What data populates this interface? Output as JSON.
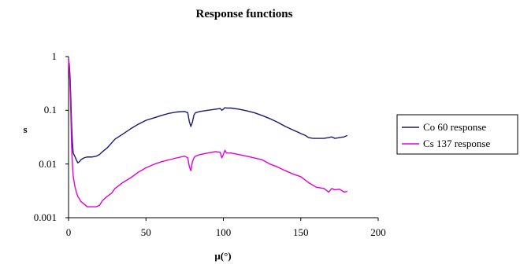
{
  "chart_data": {
    "type": "line",
    "title": "Response functions",
    "xlabel": "μ(°)",
    "ylabel": "s",
    "xlim": [
      0,
      200
    ],
    "ylim": [
      0.001,
      1
    ],
    "yscale": "log",
    "x_ticks": [
      "0",
      "50",
      "100",
      "150",
      "200"
    ],
    "y_ticks": [
      "0.001",
      "0.01",
      "0.1",
      "1"
    ],
    "grid": false,
    "legend_position": "right",
    "series": [
      {
        "name": "Co 60 response",
        "color": "#1a1a6e",
        "x": [
          0,
          0.5,
          1,
          1.5,
          2,
          2.5,
          3,
          4,
          5,
          6,
          7,
          8,
          10,
          12,
          15,
          18,
          20,
          22,
          25,
          28,
          30,
          35,
          40,
          45,
          50,
          55,
          60,
          65,
          70,
          75,
          77,
          78,
          79,
          80,
          81,
          82,
          85,
          90,
          95,
          98,
          99,
          100,
          101,
          102,
          105,
          110,
          115,
          120,
          125,
          130,
          135,
          140,
          145,
          150,
          153,
          155,
          158,
          160,
          165,
          168,
          170,
          172,
          175,
          178,
          180
        ],
        "y": [
          0.9,
          0.7,
          0.4,
          0.15,
          0.05,
          0.025,
          0.016,
          0.014,
          0.012,
          0.0105,
          0.011,
          0.012,
          0.013,
          0.0135,
          0.0135,
          0.014,
          0.015,
          0.017,
          0.02,
          0.025,
          0.029,
          0.036,
          0.045,
          0.055,
          0.065,
          0.072,
          0.08,
          0.088,
          0.093,
          0.095,
          0.09,
          0.062,
          0.05,
          0.06,
          0.082,
          0.09,
          0.095,
          0.1,
          0.105,
          0.108,
          0.1,
          0.105,
          0.112,
          0.11,
          0.11,
          0.105,
          0.098,
          0.09,
          0.08,
          0.07,
          0.06,
          0.05,
          0.043,
          0.037,
          0.034,
          0.031,
          0.03,
          0.03,
          0.03,
          0.031,
          0.032,
          0.03,
          0.031,
          0.032,
          0.034
        ]
      },
      {
        "name": "Cs 137 response",
        "color": "#e000d8",
        "x": [
          0,
          0.5,
          1,
          1.5,
          2,
          2.5,
          3,
          4,
          5,
          6,
          8,
          10,
          12,
          15,
          18,
          20,
          22,
          25,
          28,
          30,
          35,
          40,
          45,
          50,
          55,
          60,
          65,
          70,
          75,
          77,
          78,
          79,
          80,
          81,
          82,
          85,
          90,
          95,
          98,
          99,
          100,
          101,
          102,
          105,
          110,
          115,
          120,
          125,
          130,
          135,
          140,
          145,
          150,
          155,
          160,
          165,
          168,
          170,
          172,
          175,
          178,
          180
        ],
        "y": [
          0.9,
          0.6,
          0.25,
          0.08,
          0.02,
          0.01,
          0.006,
          0.004,
          0.003,
          0.0025,
          0.002,
          0.0018,
          0.0016,
          0.0016,
          0.0016,
          0.0017,
          0.0021,
          0.0025,
          0.0029,
          0.0035,
          0.0045,
          0.0055,
          0.007,
          0.0085,
          0.0098,
          0.011,
          0.012,
          0.013,
          0.014,
          0.013,
          0.009,
          0.0075,
          0.011,
          0.013,
          0.014,
          0.015,
          0.016,
          0.017,
          0.0165,
          0.013,
          0.015,
          0.018,
          0.016,
          0.016,
          0.015,
          0.014,
          0.013,
          0.012,
          0.01,
          0.0088,
          0.0075,
          0.0065,
          0.0058,
          0.0045,
          0.0037,
          0.0035,
          0.003,
          0.0035,
          0.0033,
          0.0034,
          0.003,
          0.0031
        ]
      }
    ]
  }
}
